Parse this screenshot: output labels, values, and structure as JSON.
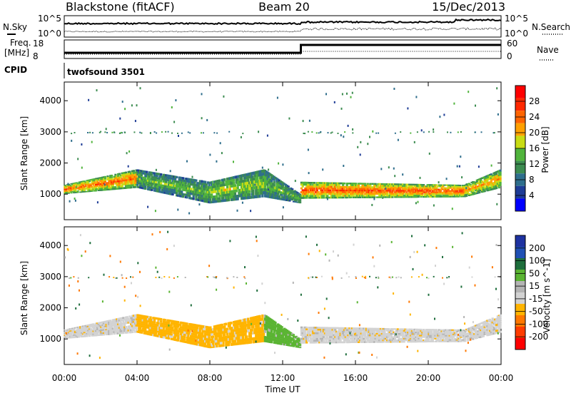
{
  "header": {
    "station": "Blackstone (fitACF)",
    "beam": "Beam 20",
    "date": "15/Dec/2013"
  },
  "noise_panel": {
    "left_label": "N.Sky",
    "right_label": "N.Search",
    "left_ticks": [
      "10^5",
      "10^0"
    ],
    "right_ticks": [
      "10^5",
      "10^0"
    ]
  },
  "freq_panel": {
    "left_label_1": "Freq.",
    "left_label_2": "[MHz]",
    "right_label": "Nave",
    "left_ticks": [
      "18",
      "8"
    ],
    "right_ticks": [
      "60",
      "0"
    ]
  },
  "cpid": {
    "label": "CPID",
    "program": "twofsound 3501"
  },
  "colors": {
    "power": [
      "#0000ff",
      "#1e3c96",
      "#2e6e8c",
      "#3c8c50",
      "#50b43c",
      "#c8dc14",
      "#ffa000",
      "#ff6400",
      "#ff2800",
      "#ff0000"
    ],
    "velocity": [
      "#1e32a0",
      "#2050b4",
      "#1e6e3c",
      "#5ab432",
      "#b4b4b4",
      "#d2d2d2",
      "#ffb400",
      "#ff7800",
      "#ff3c00",
      "#ff0000"
    ],
    "power_background": "#ffffff"
  },
  "chart_data": [
    {
      "type": "heatmap",
      "name": "power",
      "ylabel": "Slant Range [km]",
      "yticks": [
        1000,
        2000,
        3000,
        4000
      ],
      "ylim": [
        180,
        4600
      ],
      "xlim": [
        0,
        24
      ],
      "colorbar_label": "Power [dB]",
      "colorbar_ticks": [
        4,
        8,
        12,
        16,
        20,
        24,
        28
      ],
      "colorbar_range": [
        0,
        32
      ],
      "bands": [
        {
          "t0": 0.0,
          "t1": 4.0,
          "r_lo": [
            1000,
            1200
          ],
          "r_hi": [
            1300,
            1800
          ],
          "level": 24
        },
        {
          "t0": 4.0,
          "t1": 8.0,
          "r_lo": [
            1200,
            700
          ],
          "r_hi": [
            1800,
            1400
          ],
          "level": 14
        },
        {
          "t0": 8.0,
          "t1": 11.0,
          "r_lo": [
            700,
            900
          ],
          "r_hi": [
            1400,
            1800
          ],
          "level": 16
        },
        {
          "t0": 11.0,
          "t1": 13.0,
          "r_lo": [
            900,
            700
          ],
          "r_hi": [
            1800,
            1000
          ],
          "level": 14
        },
        {
          "t0": 13.0,
          "t1": 22.0,
          "r_lo": [
            850,
            900
          ],
          "r_hi": [
            1400,
            1300
          ],
          "level": 26
        },
        {
          "t0": 22.0,
          "t1": 24.0,
          "r_lo": [
            900,
            1200
          ],
          "r_hi": [
            1300,
            1800
          ],
          "level": 22
        }
      ]
    },
    {
      "type": "heatmap",
      "name": "velocity",
      "ylabel": "Slant Range [km]",
      "yticks": [
        1000,
        2000,
        3000,
        4000
      ],
      "ylim": [
        180,
        4600
      ],
      "xlim": [
        0,
        24
      ],
      "xticks": [
        "00:00",
        "04:00",
        "08:00",
        "12:00",
        "16:00",
        "20:00",
        "00:00"
      ],
      "xlabel": "Time UT",
      "colorbar_label": "Velocity [m s^-1]",
      "colorbar_ticks": [
        200,
        100,
        50,
        15,
        -15,
        -50,
        -100,
        -200
      ],
      "bands": [
        {
          "t0": 0.0,
          "t1": 4.0,
          "r_lo": [
            1000,
            1200
          ],
          "r_hi": [
            1300,
            1800
          ],
          "v": -15
        },
        {
          "t0": 4.0,
          "t1": 8.0,
          "r_lo": [
            1200,
            700
          ],
          "r_hi": [
            1800,
            1400
          ],
          "v": -50
        },
        {
          "t0": 8.0,
          "t1": 11.0,
          "r_lo": [
            700,
            900
          ],
          "r_hi": [
            1400,
            1800
          ],
          "v": -50
        },
        {
          "t0": 11.0,
          "t1": 13.0,
          "r_lo": [
            900,
            700
          ],
          "r_hi": [
            1800,
            1000
          ],
          "v": 50
        },
        {
          "t0": 13.0,
          "t1": 22.0,
          "r_lo": [
            850,
            900
          ],
          "r_hi": [
            1400,
            1300
          ],
          "v": -15
        },
        {
          "t0": 22.0,
          "t1": 24.0,
          "r_lo": [
            900,
            1200
          ],
          "r_hi": [
            1300,
            1800
          ],
          "v": -15
        }
      ]
    }
  ]
}
